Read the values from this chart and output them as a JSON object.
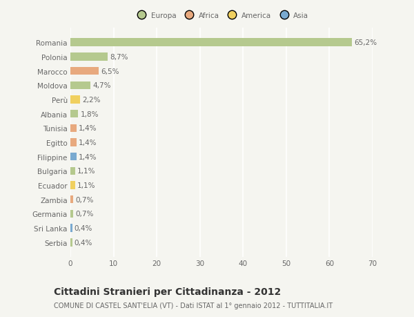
{
  "countries": [
    "Romania",
    "Polonia",
    "Marocco",
    "Moldova",
    "Perù",
    "Albania",
    "Tunisia",
    "Egitto",
    "Filippine",
    "Bulgaria",
    "Ecuador",
    "Zambia",
    "Germania",
    "Sri Lanka",
    "Serbia"
  ],
  "values": [
    65.2,
    8.7,
    6.5,
    4.7,
    2.2,
    1.8,
    1.4,
    1.4,
    1.4,
    1.1,
    1.1,
    0.7,
    0.7,
    0.4,
    0.4
  ],
  "labels": [
    "65,2%",
    "8,7%",
    "6,5%",
    "4,7%",
    "2,2%",
    "1,8%",
    "1,4%",
    "1,4%",
    "1,4%",
    "1,1%",
    "1,1%",
    "0,7%",
    "0,7%",
    "0,4%",
    "0,4%"
  ],
  "continents": [
    "Europa",
    "Europa",
    "Africa",
    "Europa",
    "America",
    "Europa",
    "Africa",
    "Africa",
    "Asia",
    "Europa",
    "America",
    "Africa",
    "Europa",
    "Asia",
    "Europa"
  ],
  "continent_colors": {
    "Europa": "#b5c98e",
    "Africa": "#e8a97e",
    "America": "#f0d060",
    "Asia": "#7aaad0"
  },
  "background_color": "#f5f5f0",
  "plot_bg_color": "#f5f5f0",
  "title": "Cittadini Stranieri per Cittadinanza - 2012",
  "subtitle": "COMUNE DI CASTEL SANT'ELIA (VT) - Dati ISTAT al 1° gennaio 2012 - TUTTITALIA.IT",
  "xlim": [
    0,
    70
  ],
  "xticks": [
    0,
    10,
    20,
    30,
    40,
    50,
    60,
    70
  ],
  "grid_color": "#ffffff",
  "bar_height": 0.55,
  "text_color": "#666666",
  "label_fontsize": 7.5,
  "tick_fontsize": 7.5,
  "title_fontsize": 10,
  "subtitle_fontsize": 7,
  "legend_order": [
    "Europa",
    "Africa",
    "America",
    "Asia"
  ]
}
